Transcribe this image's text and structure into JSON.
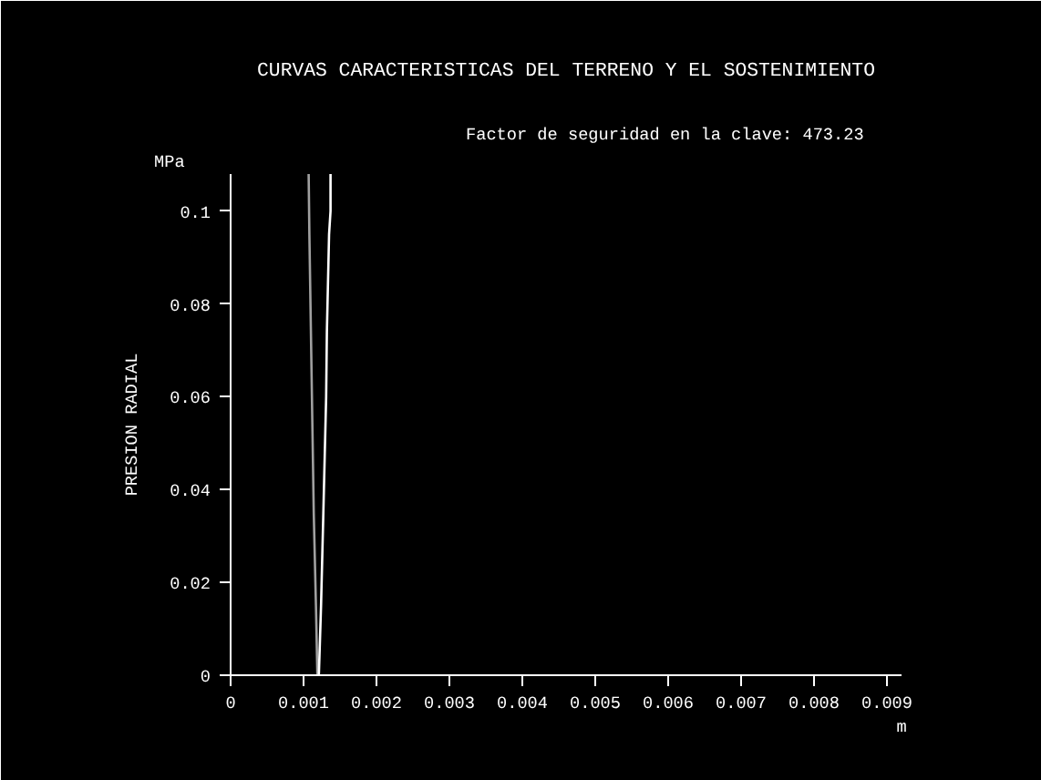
{
  "chart_data": {
    "type": "line",
    "title": "CURVAS CARACTERISTICAS DEL TERRENO Y EL SOSTENIMIENTO",
    "xlabel": "m",
    "ylabel": "PRESION RADIAL",
    "annotations": [
      "MPa",
      "Factor de seguridad en la clave:     473.23"
    ],
    "xlim": [
      0,
      0.0092
    ],
    "xticks": [
      0,
      0.001,
      0.002,
      0.003,
      0.004,
      0.005,
      0.006,
      0.007,
      0.008,
      0.009
    ],
    "ylim": [
      0,
      0.108
    ],
    "yticks": [
      0,
      0.02,
      0.04,
      0.06,
      0.08,
      0.1
    ],
    "grid": false,
    "marker": "none",
    "line_style": "solid",
    "series": [
      {
        "color": "#a0a0a0",
        "x": [
          0.00107,
          0.00108,
          0.0011,
          0.00112,
          0.00114,
          0.00117,
          0.00119
        ],
        "values": [
          0.108,
          0.095,
          0.075,
          0.055,
          0.035,
          0.015,
          0
        ]
      },
      {
        "color": "#ffffff",
        "x": [
          0.00137,
          0.00137,
          0.00135,
          0.00132,
          0.00131,
          0.00129,
          0.00127,
          0.00124,
          0.00121
        ],
        "values": [
          0.108,
          0.1,
          0.095,
          0.074,
          0.06,
          0.047,
          0.034,
          0.015,
          0
        ]
      }
    ]
  }
}
